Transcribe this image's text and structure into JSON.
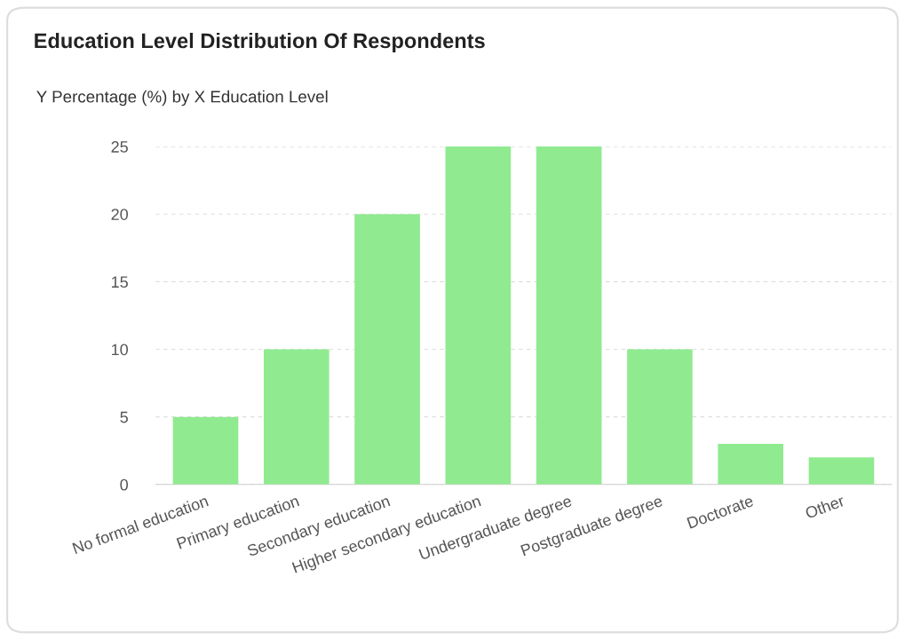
{
  "chart_data": {
    "type": "bar",
    "title": "Education Level Distribution Of Respondents",
    "subtitle": "Y Percentage (%) by X Education Level",
    "categories": [
      "No formal education",
      "Primary education",
      "Secondary education",
      "Higher secondary education",
      "Undergraduate degree",
      "Postgraduate degree",
      "Doctorate",
      "Other"
    ],
    "values": [
      5,
      10,
      20,
      25,
      25,
      10,
      3,
      2
    ],
    "color": "#90ea90",
    "ylim": [
      0,
      25
    ],
    "yticks": [
      0,
      5,
      10,
      15,
      20,
      25
    ],
    "grid": "y"
  }
}
